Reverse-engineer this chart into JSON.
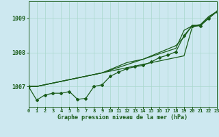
{
  "title": "Graphe pression niveau de la mer (hPa)",
  "background_color": "#cde8f0",
  "grid_color": "#a8d8cc",
  "line_color": "#1a5c1a",
  "xlim": [
    0,
    23
  ],
  "ylim": [
    1006.4,
    1009.5
  ],
  "yticks": [
    1007,
    1008,
    1009
  ],
  "xticks": [
    0,
    1,
    2,
    3,
    4,
    5,
    6,
    7,
    8,
    9,
    10,
    11,
    12,
    13,
    14,
    15,
    16,
    17,
    18,
    19,
    20,
    21,
    22,
    23
  ],
  "hours": [
    0,
    1,
    2,
    3,
    4,
    5,
    6,
    7,
    8,
    9,
    10,
    11,
    12,
    13,
    14,
    15,
    16,
    17,
    18,
    19,
    20,
    21,
    22,
    23
  ],
  "line_marker": [
    1007.0,
    1006.6,
    1006.75,
    1006.8,
    1006.8,
    1006.85,
    1006.62,
    1006.65,
    1007.0,
    1007.05,
    1007.3,
    1007.42,
    1007.52,
    1007.58,
    1007.62,
    1007.72,
    1007.85,
    1007.92,
    1008.02,
    1008.5,
    1008.78,
    1008.78,
    1009.0,
    1009.2
  ],
  "line_straight1": [
    1007.0,
    1007.0,
    1007.05,
    1007.1,
    1007.15,
    1007.2,
    1007.25,
    1007.3,
    1007.35,
    1007.4,
    1007.45,
    1007.5,
    1007.55,
    1007.6,
    1007.65,
    1007.7,
    1007.75,
    1007.8,
    1007.85,
    1007.9,
    1008.75,
    1008.8,
    1009.0,
    1009.2
  ],
  "line_straight2": [
    1007.0,
    1007.0,
    1007.05,
    1007.1,
    1007.15,
    1007.2,
    1007.25,
    1007.3,
    1007.35,
    1007.4,
    1007.48,
    1007.56,
    1007.64,
    1007.72,
    1007.8,
    1007.88,
    1007.96,
    1008.04,
    1008.12,
    1008.65,
    1008.78,
    1008.82,
    1009.05,
    1009.2
  ],
  "line_straight3": [
    1007.0,
    1007.0,
    1007.05,
    1007.1,
    1007.15,
    1007.2,
    1007.25,
    1007.3,
    1007.35,
    1007.4,
    1007.5,
    1007.6,
    1007.7,
    1007.75,
    1007.8,
    1007.9,
    1008.0,
    1008.1,
    1008.2,
    1008.45,
    1008.8,
    1008.8,
    1009.05,
    1009.2
  ]
}
